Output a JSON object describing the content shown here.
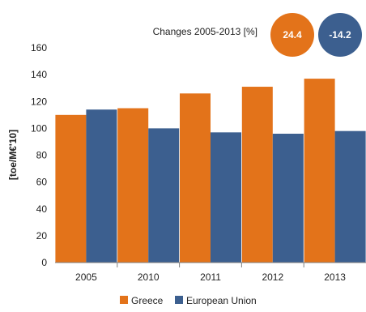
{
  "chart_data": {
    "type": "bar",
    "title": "Changes 2005-2013 [%]",
    "ylabel": "[toe/M€'10]",
    "xlabel": "",
    "ylim": [
      0,
      160
    ],
    "yticks": [
      0,
      20,
      40,
      60,
      80,
      100,
      120,
      140,
      160
    ],
    "categories": [
      "2005",
      "2010",
      "2011",
      "2012",
      "2013"
    ],
    "series": [
      {
        "name": "Greece",
        "color": "#E3731A",
        "values": [
          110,
          115,
          126,
          131,
          137
        ]
      },
      {
        "name": "European Union",
        "color": "#3C5F8F",
        "values": [
          114,
          100,
          97,
          96,
          98
        ]
      }
    ],
    "changes": [
      {
        "series": "Greece",
        "value": "24.4",
        "color": "#E3731A"
      },
      {
        "series": "European Union",
        "value": "-14.2",
        "color": "#3C5F8F"
      }
    ],
    "grid": false,
    "legend_position": "bottom"
  }
}
